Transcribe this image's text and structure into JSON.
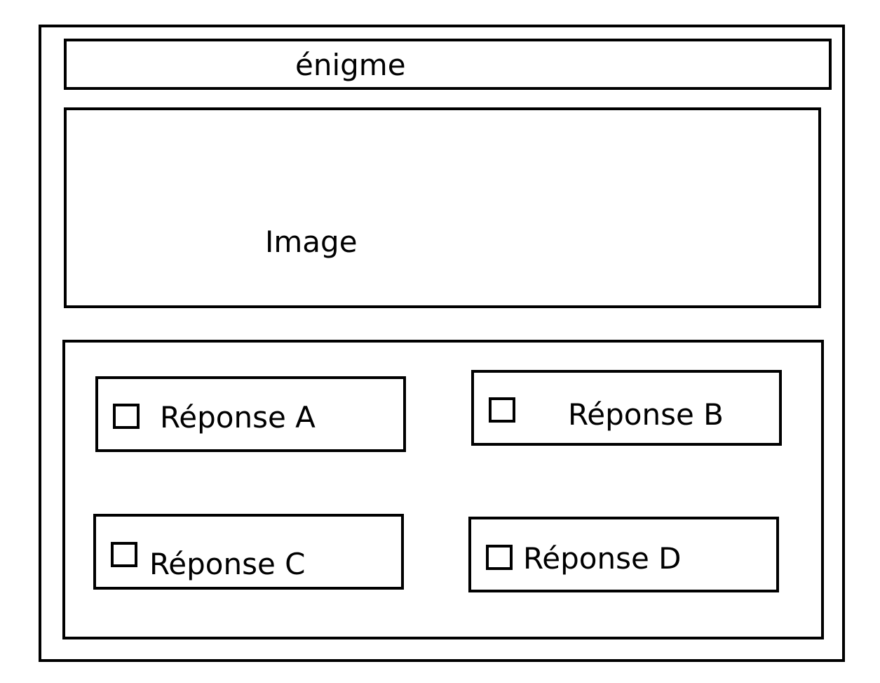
{
  "title": "énigme",
  "image_placeholder": "Image",
  "answers": [
    {
      "label": "Réponse A"
    },
    {
      "label": "Réponse B"
    },
    {
      "label": "Réponse C"
    },
    {
      "label": "Réponse D"
    }
  ]
}
